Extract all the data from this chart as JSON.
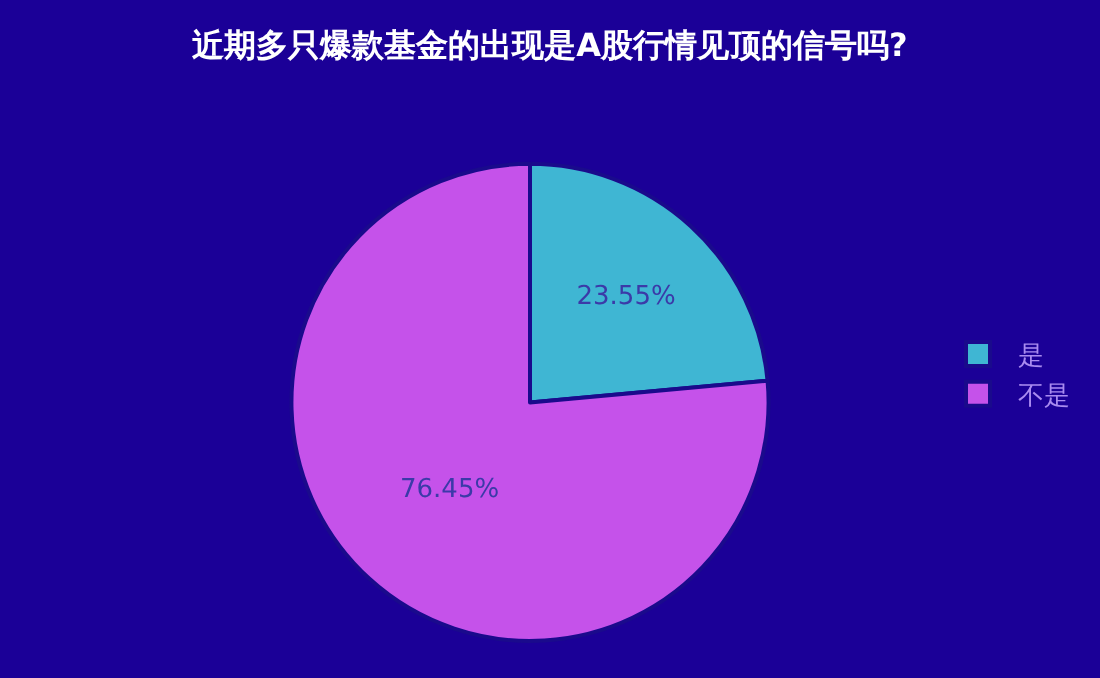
{
  "chart_data": {
    "type": "pie",
    "title": "近期多只爆款基金的出现是A股行情见顶的信号吗?",
    "categories": [
      "是",
      "不是"
    ],
    "values": [
      23.55,
      76.45
    ],
    "colors": [
      "#3fb6d3",
      "#c552ea"
    ],
    "value_labels": [
      "23.55%",
      "76.45%"
    ],
    "legend": "right"
  }
}
